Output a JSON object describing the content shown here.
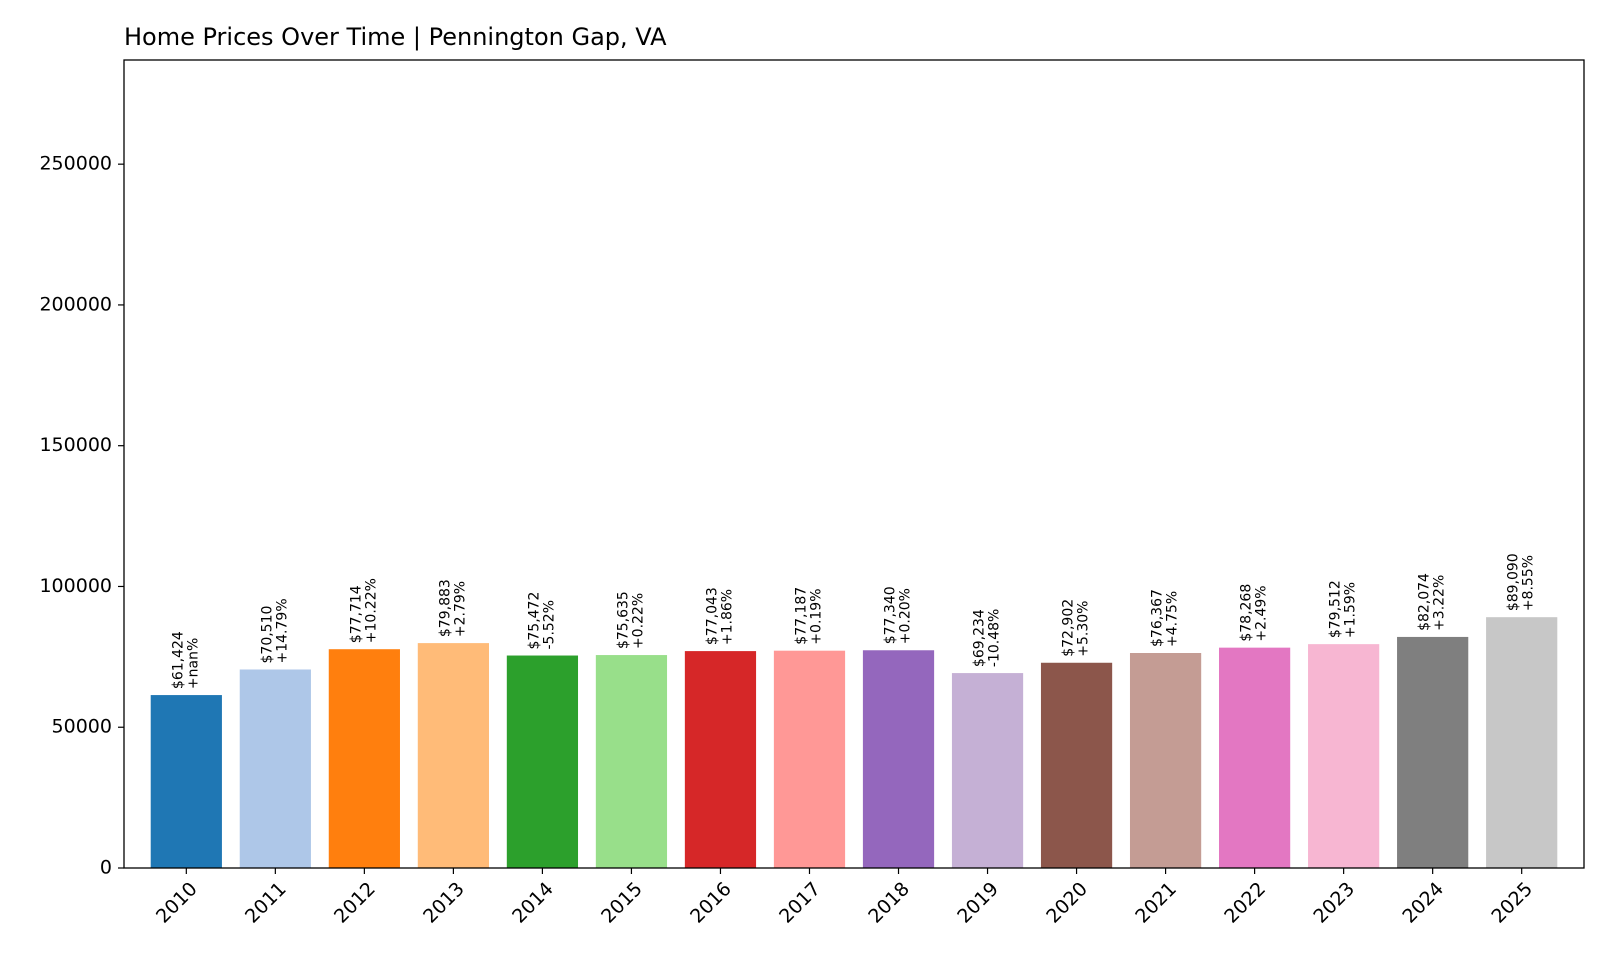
{
  "chart_data": {
    "type": "bar",
    "title": "Home Prices Over Time | Pennington Gap, VA",
    "xlabel": "",
    "ylabel": "",
    "categories": [
      "2010",
      "2011",
      "2012",
      "2013",
      "2014",
      "2015",
      "2016",
      "2017",
      "2018",
      "2019",
      "2020",
      "2021",
      "2022",
      "2023",
      "2024",
      "2025"
    ],
    "values": [
      61424,
      70510,
      77714,
      79883,
      75472,
      75635,
      77043,
      77187,
      77340,
      69234,
      72902,
      76367,
      78268,
      79512,
      82074,
      89090
    ],
    "value_labels": [
      "$61,424",
      "$70,510",
      "$77,714",
      "$79,883",
      "$75,472",
      "$75,635",
      "$77,043",
      "$77,187",
      "$77,340",
      "$69,234",
      "$72,902",
      "$76,367",
      "$78,268",
      "$79,512",
      "$82,074",
      "$89,090"
    ],
    "change_labels": [
      "+nan%",
      "+14.79%",
      "+10.22%",
      "+2.79%",
      "-5.52%",
      "+0.22%",
      "+1.86%",
      "+0.19%",
      "+0.20%",
      "-10.48%",
      "+5.30%",
      "+4.75%",
      "+2.49%",
      "+1.59%",
      "+3.22%",
      "+8.55%"
    ],
    "colors": [
      "#1f77b4",
      "#aec7e8",
      "#ff7f0e",
      "#ffbb78",
      "#2ca02c",
      "#98df8a",
      "#d62728",
      "#ff9896",
      "#9467bd",
      "#c5b0d5",
      "#8c564b",
      "#c49c94",
      "#e377c2",
      "#f7b6d2",
      "#7f7f7f",
      "#c7c7c7"
    ],
    "ylim": [
      0,
      287000
    ],
    "yticks": [
      0,
      50000,
      100000,
      150000,
      200000,
      250000
    ],
    "ytick_labels": [
      "0",
      "50000",
      "100000",
      "150000",
      "200000",
      "250000"
    ],
    "grid": false,
    "legend": "none"
  }
}
